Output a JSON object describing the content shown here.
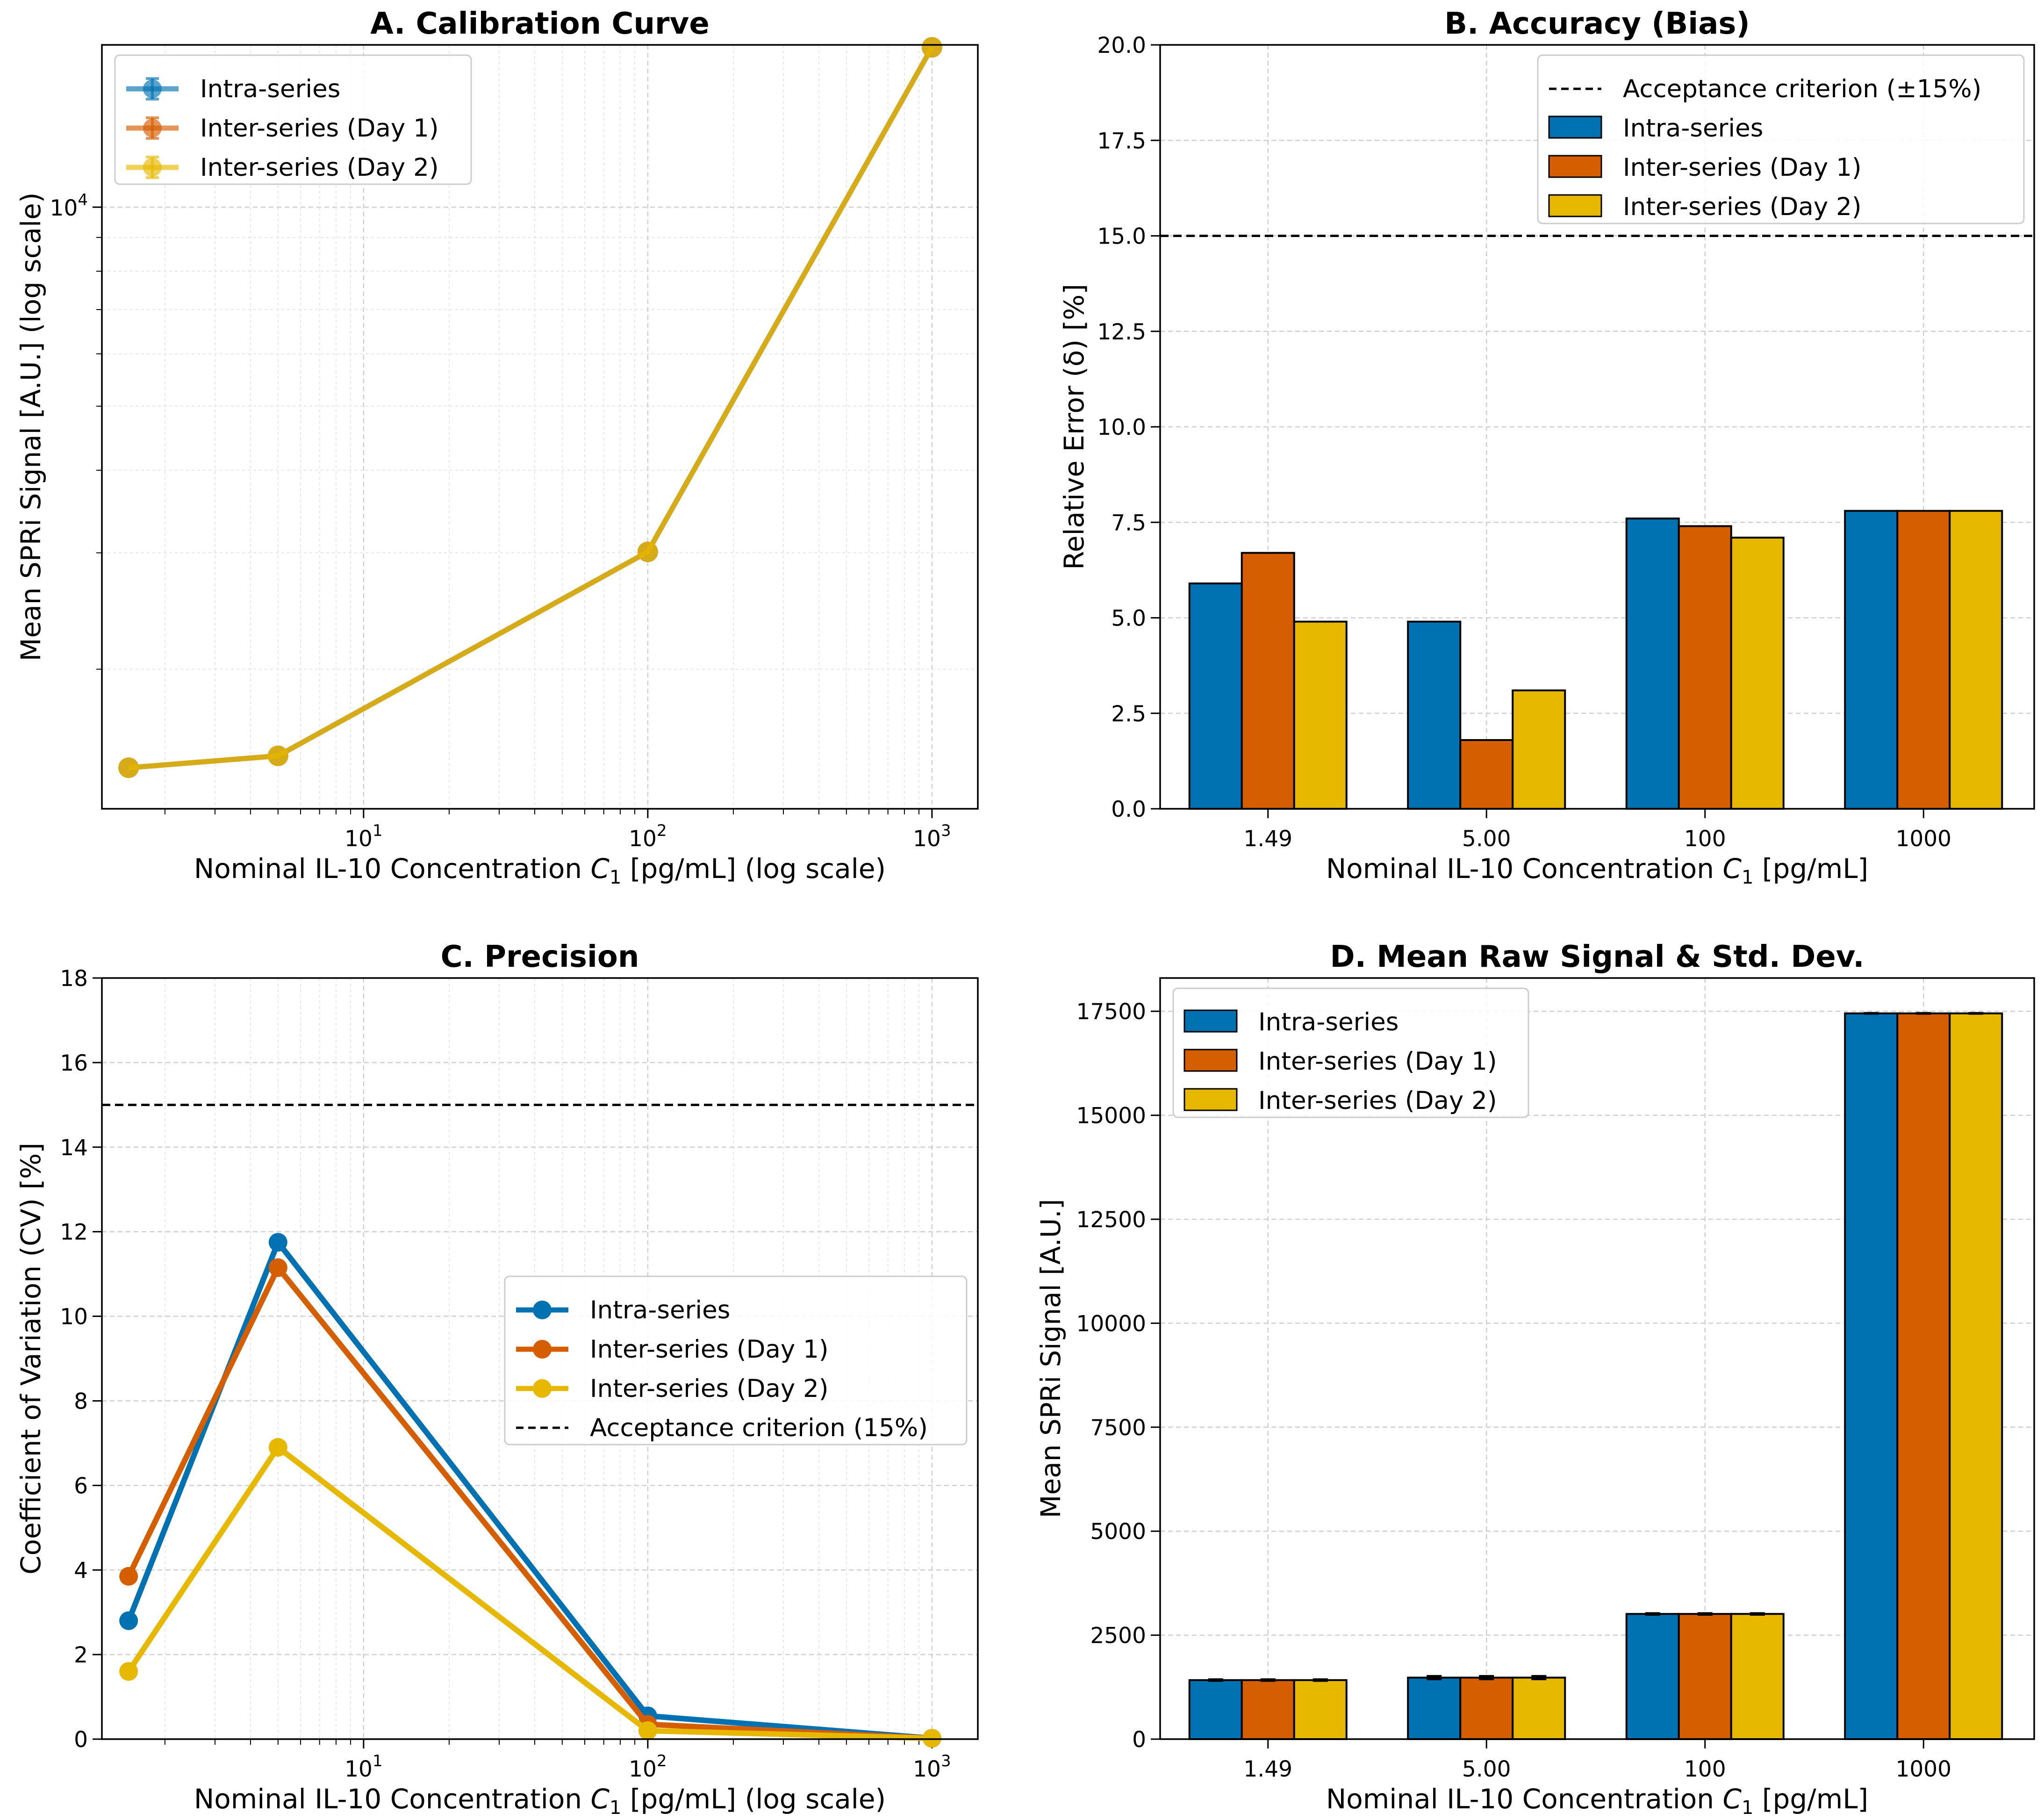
{
  "chart_data": [
    {
      "type": "line",
      "id": "A",
      "title": "A. Calibration Curve",
      "xlabel": "Nominal IL-10 Concentration C1 [pg/mL] (log scale)",
      "ylabel": "Mean SPRi Signal [A.U.] (log scale)",
      "xscale": "log",
      "yscale": "log",
      "xlim": [
        1.2,
        1450
      ],
      "ylim": [
        1230,
        17600
      ],
      "xticks": [
        {
          "value": 10,
          "base": "10",
          "exp": "1"
        },
        {
          "value": 100,
          "base": "10",
          "exp": "2"
        },
        {
          "value": 1000,
          "base": "10",
          "exp": "3"
        }
      ],
      "yticks": [
        {
          "value": 10000,
          "base": "10",
          "exp": "4"
        }
      ],
      "x": [
        1.49,
        5.0,
        100,
        1000
      ],
      "series": [
        {
          "name": "Intra-series",
          "color": "#0072b2",
          "values": [
            1419,
            1479,
            3010,
            17450
          ],
          "overlay": false
        },
        {
          "name": "Inter-series (Day 1)",
          "color": "#d55e00",
          "values": [
            1419,
            1479,
            3010,
            17450
          ],
          "overlay": false
        },
        {
          "name": "Inter-series (Day 2)",
          "color": "#e6b800",
          "values": [
            1419,
            1479,
            3010,
            17450
          ],
          "overlay": true
        }
      ],
      "legend": "top-left",
      "grid": true
    },
    {
      "type": "bar",
      "id": "B",
      "title": "B. Accuracy (Bias)",
      "xlabel": "Nominal IL-10 Concentration C1 [pg/mL]",
      "ylabel": "Relative Error (δ) [%]",
      "categories": [
        "1.49",
        "5.00",
        "100",
        "1000"
      ],
      "ylim": [
        0,
        20
      ],
      "yticks": [
        "0.0",
        "2.5",
        "5.0",
        "7.5",
        "10.0",
        "12.5",
        "15.0",
        "17.5",
        "20.0"
      ],
      "series": [
        {
          "name": "Intra-series",
          "color": "#0072b2",
          "values": [
            5.9,
            4.9,
            7.6,
            7.8
          ]
        },
        {
          "name": "Inter-series (Day 1)",
          "color": "#d55e00",
          "values": [
            6.7,
            1.8,
            7.4,
            7.8
          ]
        },
        {
          "name": "Inter-series (Day 2)",
          "color": "#e6b800",
          "values": [
            4.9,
            3.1,
            7.1,
            7.8
          ]
        }
      ],
      "reference_line": {
        "value": 15,
        "label": "Acceptance criterion (±15%)"
      },
      "legend": "top-right",
      "grid": true
    },
    {
      "type": "line",
      "id": "C",
      "title": "C. Precision",
      "xlabel": "Nominal IL-10 Concentration C1 [pg/mL] (log scale)",
      "ylabel": "Coefficient of Variation (CV) [%]",
      "xscale": "log",
      "xlim": [
        1.2,
        1450
      ],
      "ylim": [
        0,
        18
      ],
      "xticks": [
        {
          "value": 10,
          "base": "10",
          "exp": "1"
        },
        {
          "value": 100,
          "base": "10",
          "exp": "2"
        },
        {
          "value": 1000,
          "base": "10",
          "exp": "3"
        }
      ],
      "yticks": [
        "0",
        "2",
        "4",
        "6",
        "8",
        "10",
        "12",
        "14",
        "16",
        "18"
      ],
      "x": [
        1.49,
        5.0,
        100,
        1000
      ],
      "series": [
        {
          "name": "Intra-series",
          "color": "#0072b2",
          "values": [
            2.8,
            11.75,
            0.55,
            0.02
          ]
        },
        {
          "name": "Inter-series (Day 1)",
          "color": "#d55e00",
          "values": [
            3.85,
            11.15,
            0.35,
            0.02
          ]
        },
        {
          "name": "Inter-series (Day 2)",
          "color": "#e6b800",
          "values": [
            1.6,
            6.9,
            0.2,
            0.02
          ]
        }
      ],
      "reference_line": {
        "value": 15,
        "label": "Acceptance criterion (15%)"
      },
      "legend": "center-right",
      "grid": true
    },
    {
      "type": "bar",
      "id": "D",
      "title": "D. Mean Raw Signal & Std. Dev.",
      "xlabel": "Nominal IL-10 Concentration C1 [pg/mL]",
      "ylabel": "Mean SPRi Signal [A.U.]",
      "categories": [
        "1.49",
        "5.00",
        "100",
        "1000"
      ],
      "ylim": [
        0,
        18300
      ],
      "yticks": [
        "0",
        "2500",
        "5000",
        "7500",
        "10000",
        "12500",
        "15000",
        "17500"
      ],
      "series": [
        {
          "name": "Intra-series",
          "color": "#0072b2",
          "values": [
            1419,
            1479,
            3010,
            17450
          ],
          "errors": [
            20,
            40,
            20,
            10
          ]
        },
        {
          "name": "Inter-series (Day 1)",
          "color": "#d55e00",
          "values": [
            1419,
            1479,
            3010,
            17450
          ],
          "errors": [
            20,
            40,
            20,
            10
          ]
        },
        {
          "name": "Inter-series (Day 2)",
          "color": "#e6b800",
          "values": [
            1419,
            1479,
            3010,
            17450
          ],
          "errors": [
            20,
            40,
            20,
            10
          ]
        }
      ],
      "legend": "top-left",
      "grid": true
    }
  ]
}
